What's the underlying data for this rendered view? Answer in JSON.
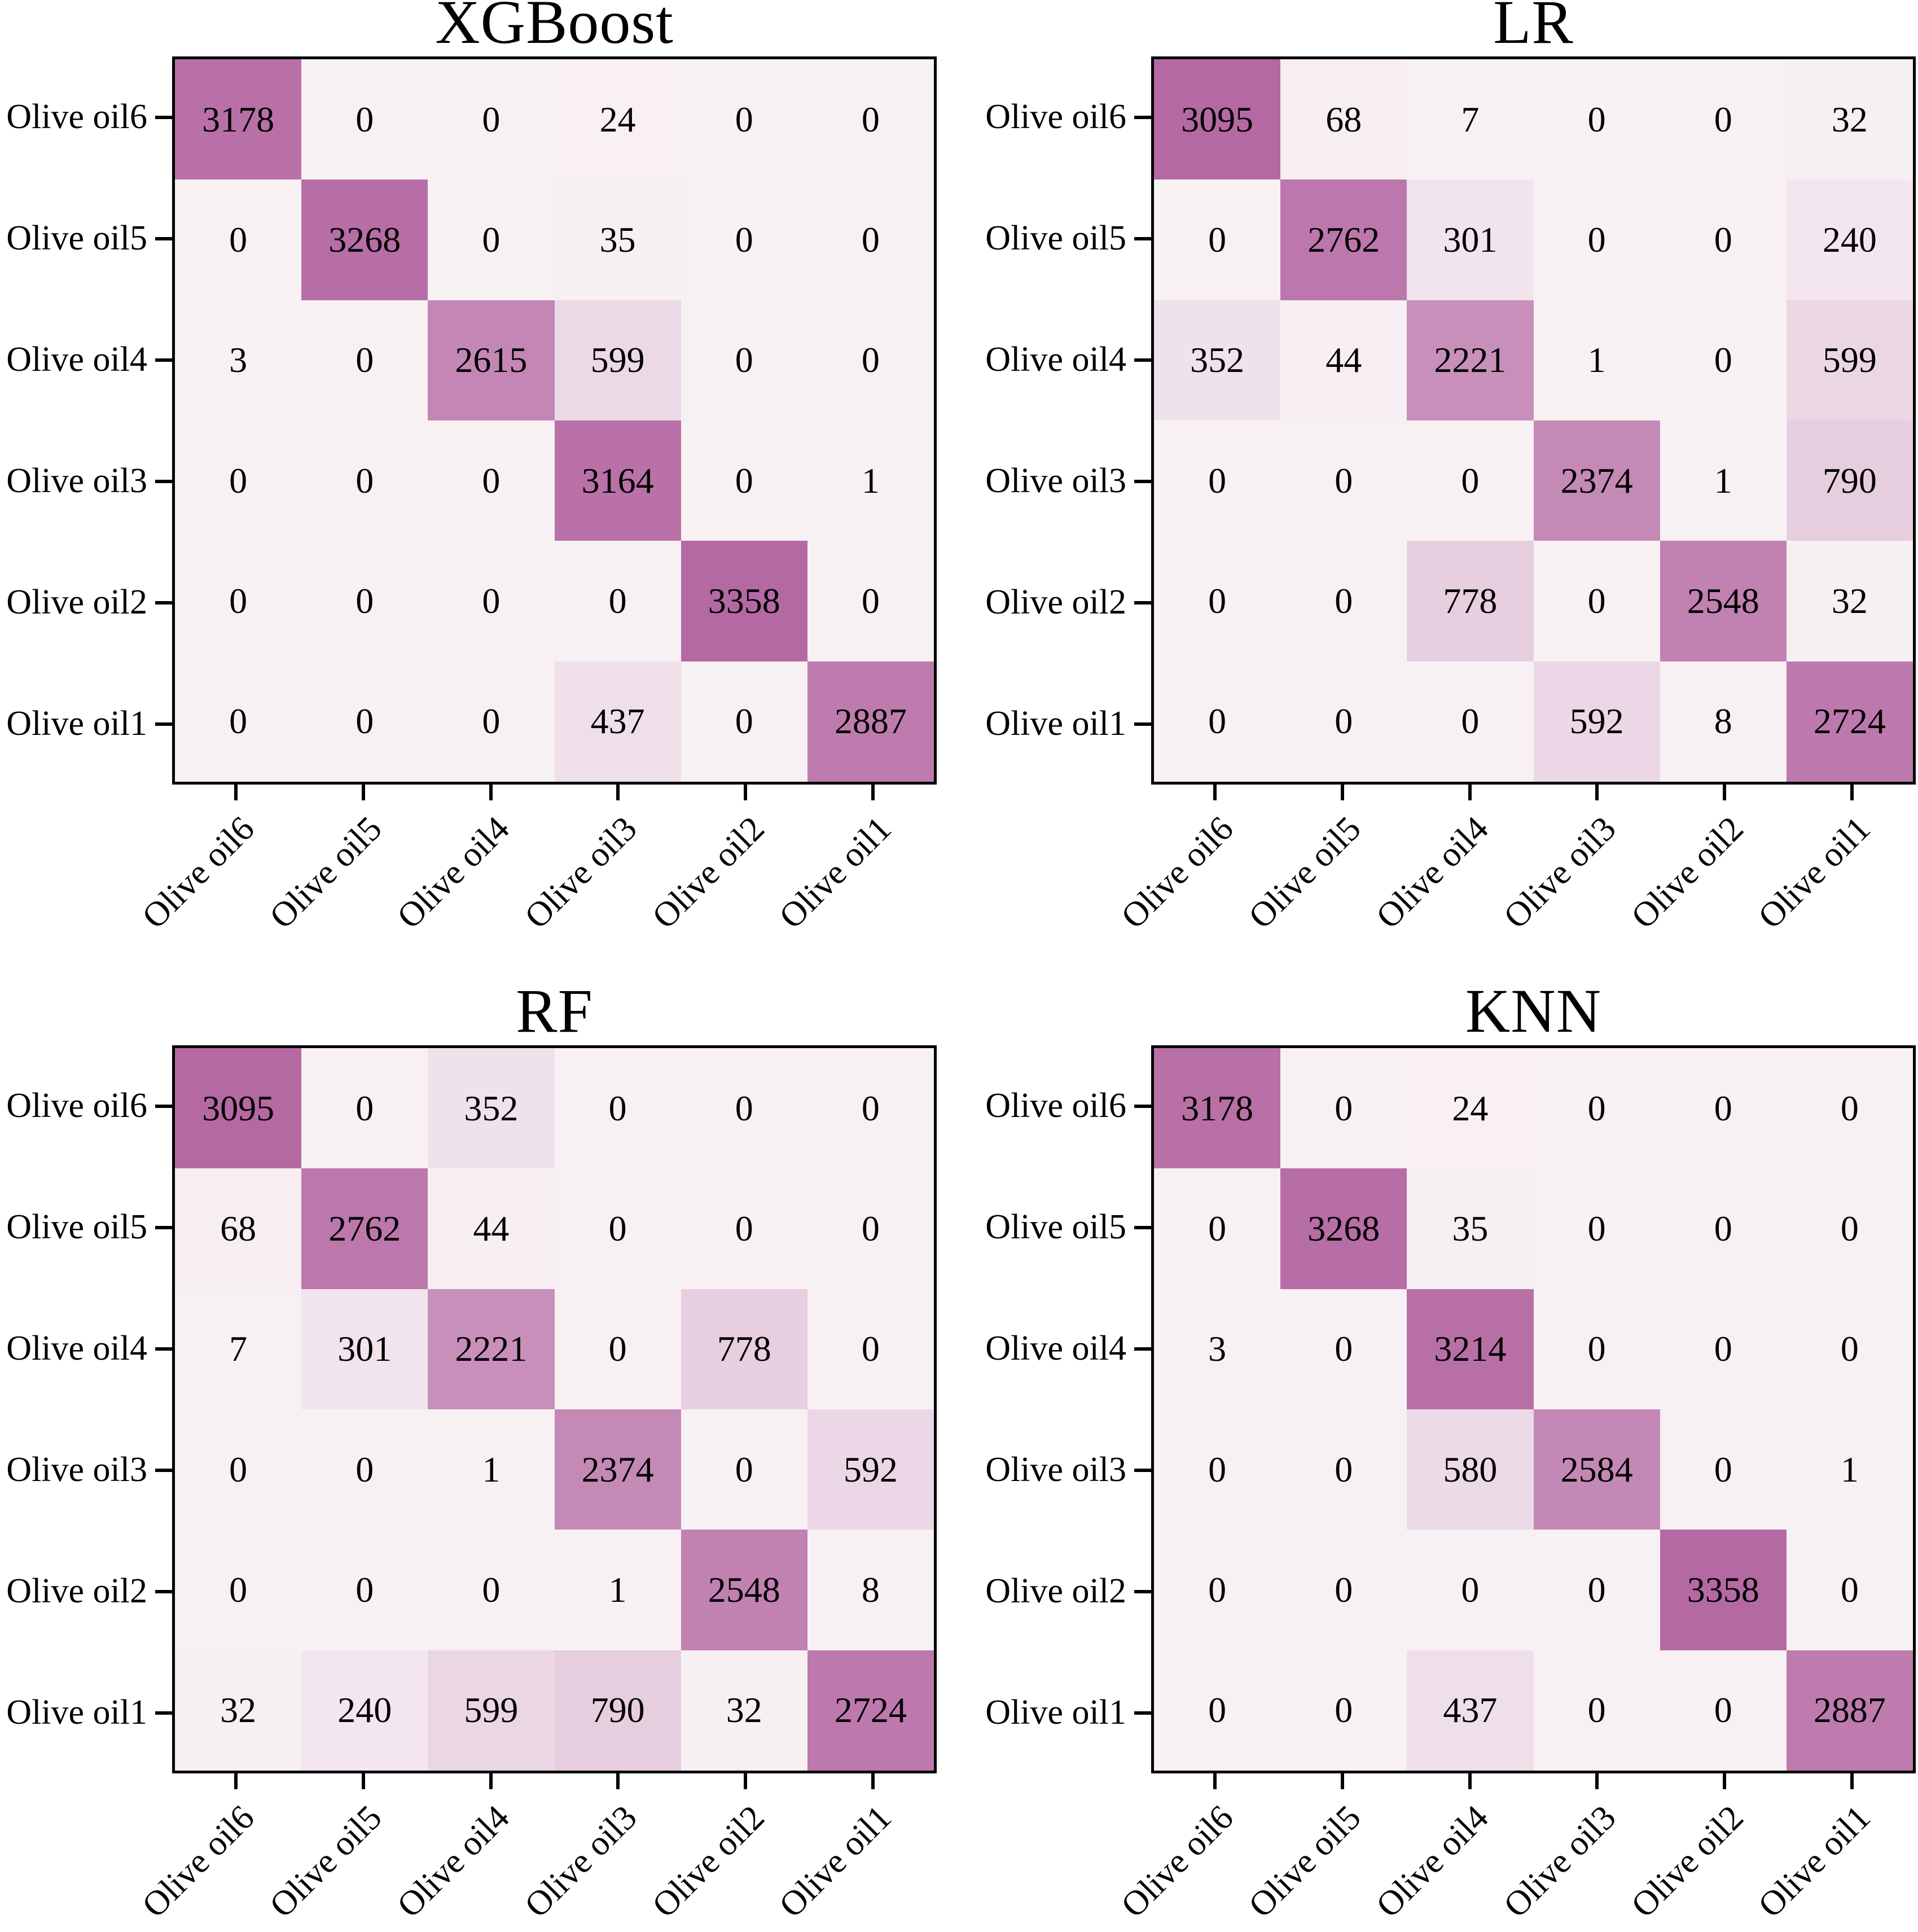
{
  "style": {
    "background": "#ffffff",
    "text_color": "#000000",
    "heatmap_min_color": "#f8f1f4",
    "heatmap_max_color": "#b569a3",
    "border_color": "#000000",
    "x_label_rotation_deg": 45
  },
  "chart_data": [
    {
      "type": "heatmap",
      "title": "XGBoost",
      "y_categories": [
        "Olive oil6",
        "Olive oil5",
        "Olive oil4",
        "Olive oil3",
        "Olive oil2",
        "Olive oil1"
      ],
      "x_categories": [
        "Olive oil6",
        "Olive oil5",
        "Olive oil4",
        "Olive oil3",
        "Olive oil2",
        "Olive oil1"
      ],
      "matrix": [
        [
          3178,
          0,
          0,
          24,
          0,
          0
        ],
        [
          0,
          3268,
          0,
          35,
          0,
          0
        ],
        [
          3,
          0,
          2615,
          599,
          0,
          0
        ],
        [
          0,
          0,
          0,
          3164,
          0,
          1
        ],
        [
          0,
          0,
          0,
          0,
          3358,
          0
        ],
        [
          0,
          0,
          0,
          437,
          0,
          2887
        ]
      ],
      "vmin": 0,
      "vmax": 3358,
      "legend": "none",
      "grid": "off"
    },
    {
      "type": "heatmap",
      "title": "LR",
      "y_categories": [
        "Olive oil6",
        "Olive oil5",
        "Olive oil4",
        "Olive oil3",
        "Olive oil2",
        "Olive oil1"
      ],
      "x_categories": [
        "Olive oil6",
        "Olive oil5",
        "Olive oil4",
        "Olive oil3",
        "Olive oil2",
        "Olive oil1"
      ],
      "matrix": [
        [
          3095,
          68,
          7,
          0,
          0,
          32
        ],
        [
          0,
          2762,
          301,
          0,
          0,
          240
        ],
        [
          352,
          44,
          2221,
          1,
          0,
          599
        ],
        [
          0,
          0,
          0,
          2374,
          1,
          790
        ],
        [
          0,
          0,
          778,
          0,
          2548,
          32
        ],
        [
          0,
          0,
          0,
          592,
          8,
          2724
        ]
      ],
      "vmin": 0,
      "vmax": 3095,
      "legend": "none",
      "grid": "off"
    },
    {
      "type": "heatmap",
      "title": "RF",
      "y_categories": [
        "Olive oil6",
        "Olive oil5",
        "Olive oil4",
        "Olive oil3",
        "Olive oil2",
        "Olive oil1"
      ],
      "x_categories": [
        "Olive oil6",
        "Olive oil5",
        "Olive oil4",
        "Olive oil3",
        "Olive oil2",
        "Olive oil1"
      ],
      "matrix": [
        [
          3095,
          0,
          352,
          0,
          0,
          0
        ],
        [
          68,
          2762,
          44,
          0,
          0,
          0
        ],
        [
          7,
          301,
          2221,
          0,
          778,
          0
        ],
        [
          0,
          0,
          1,
          2374,
          0,
          592
        ],
        [
          0,
          0,
          0,
          1,
          2548,
          8
        ],
        [
          32,
          240,
          599,
          790,
          32,
          2724
        ]
      ],
      "vmin": 0,
      "vmax": 3095,
      "legend": "none",
      "grid": "off"
    },
    {
      "type": "heatmap",
      "title": "KNN",
      "y_categories": [
        "Olive oil6",
        "Olive oil5",
        "Olive oil4",
        "Olive oil3",
        "Olive oil2",
        "Olive oil1"
      ],
      "x_categories": [
        "Olive oil6",
        "Olive oil5",
        "Olive oil4",
        "Olive oil3",
        "Olive oil2",
        "Olive oil1"
      ],
      "matrix": [
        [
          3178,
          0,
          24,
          0,
          0,
          0
        ],
        [
          0,
          3268,
          35,
          0,
          0,
          0
        ],
        [
          3,
          0,
          3214,
          0,
          0,
          0
        ],
        [
          0,
          0,
          580,
          2584,
          0,
          1
        ],
        [
          0,
          0,
          0,
          0,
          3358,
          0
        ],
        [
          0,
          0,
          437,
          0,
          0,
          2887
        ]
      ],
      "vmin": 0,
      "vmax": 3358,
      "legend": "none",
      "grid": "off"
    }
  ]
}
